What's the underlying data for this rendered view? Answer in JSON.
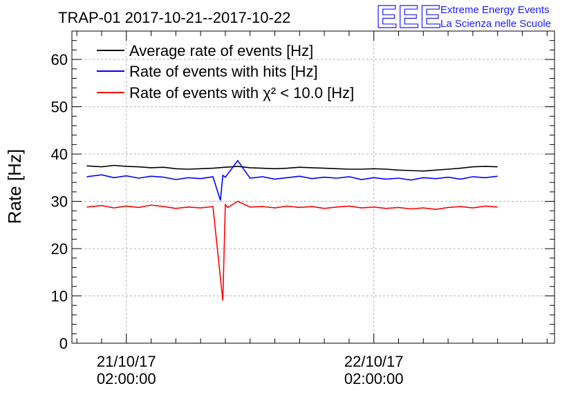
{
  "header": {
    "title": "TRAP-01 2017-10-21--2017-10-22",
    "logo_text": "EEE",
    "brand_line1": "Extreme Energy Events",
    "brand_line2": "La Scienza nelle Scuole"
  },
  "chart_data": {
    "type": "line",
    "title": "TRAP-01 2017-10-21--2017-10-22",
    "ylabel": "Rate [Hz]",
    "xlabel": "",
    "ylim": [
      0,
      66
    ],
    "xlim": [
      -0.22,
      1.73
    ],
    "x_unit": "days since 2017-10-21 02:00:00",
    "y_ticks": [
      0,
      10,
      20,
      30,
      40,
      50,
      60
    ],
    "x_ticks": [
      {
        "x": 0,
        "line1": "21/10/17",
        "line2": "02:00:00"
      },
      {
        "x": 1,
        "line1": "22/10/17",
        "line2": "02:00:00"
      }
    ],
    "grid": true,
    "legend_position": "top-left",
    "series": [
      {
        "name": "Average rate of events [Hz]",
        "color": "#000000",
        "x": [
          -0.16,
          -0.1,
          -0.05,
          0.0,
          0.05,
          0.1,
          0.15,
          0.2,
          0.25,
          0.3,
          0.35,
          0.4,
          0.45,
          0.5,
          0.55,
          0.6,
          0.65,
          0.7,
          0.75,
          0.8,
          0.85,
          0.9,
          0.95,
          1.0,
          1.05,
          1.1,
          1.15,
          1.2,
          1.25,
          1.3,
          1.35,
          1.4,
          1.45,
          1.5
        ],
        "values": [
          37.5,
          37.3,
          37.6,
          37.4,
          37.3,
          37.1,
          37.2,
          36.9,
          36.8,
          36.9,
          37.0,
          37.2,
          37.4,
          37.1,
          37.0,
          36.9,
          37.0,
          37.2,
          37.1,
          37.0,
          36.9,
          36.8,
          36.8,
          36.9,
          36.8,
          36.6,
          36.5,
          36.4,
          36.6,
          36.8,
          37.0,
          37.3,
          37.4,
          37.3
        ]
      },
      {
        "name": "Rate of events with hits [Hz]",
        "color": "#0000ff",
        "x": [
          -0.16,
          -0.1,
          -0.05,
          0.0,
          0.05,
          0.1,
          0.15,
          0.2,
          0.25,
          0.3,
          0.35,
          0.38,
          0.39,
          0.4,
          0.45,
          0.5,
          0.55,
          0.6,
          0.65,
          0.7,
          0.75,
          0.8,
          0.85,
          0.9,
          0.95,
          1.0,
          1.05,
          1.1,
          1.15,
          1.2,
          1.25,
          1.3,
          1.35,
          1.4,
          1.45,
          1.5
        ],
        "values": [
          35.2,
          35.6,
          35.0,
          35.4,
          34.9,
          35.3,
          35.1,
          34.6,
          35.0,
          34.8,
          35.2,
          30.2,
          35.5,
          35.1,
          38.6,
          34.9,
          35.2,
          34.7,
          35.0,
          35.3,
          34.8,
          35.1,
          34.9,
          35.2,
          34.6,
          35.0,
          34.7,
          34.9,
          34.5,
          35.0,
          34.8,
          35.1,
          34.7,
          35.2,
          35.0,
          35.3
        ]
      },
      {
        "name": "Rate of events with χ² < 10.0 [Hz]",
        "color": "#ff0000",
        "x": [
          -0.16,
          -0.1,
          -0.05,
          0.0,
          0.05,
          0.1,
          0.15,
          0.2,
          0.25,
          0.3,
          0.35,
          0.39,
          0.4,
          0.41,
          0.45,
          0.5,
          0.55,
          0.6,
          0.65,
          0.7,
          0.75,
          0.8,
          0.85,
          0.9,
          0.95,
          1.0,
          1.05,
          1.1,
          1.15,
          1.2,
          1.25,
          1.3,
          1.35,
          1.4,
          1.45,
          1.5
        ],
        "values": [
          28.8,
          29.1,
          28.6,
          29.0,
          28.7,
          29.2,
          28.9,
          28.5,
          28.8,
          28.6,
          28.9,
          9.0,
          29.3,
          28.7,
          30.0,
          28.8,
          28.9,
          28.6,
          29.0,
          28.7,
          28.9,
          28.5,
          28.8,
          29.0,
          28.6,
          28.8,
          28.5,
          28.7,
          28.4,
          28.6,
          28.3,
          28.7,
          28.9,
          28.6,
          29.0,
          28.8
        ]
      }
    ],
    "legend": [
      {
        "label": "Average rate of events [Hz]",
        "color": "#000000"
      },
      {
        "label": "Rate of events with hits [Hz]",
        "color": "#0000ff"
      },
      {
        "label": "Rate of events with χ² < 10.0 [Hz]",
        "color": "#ff0000"
      }
    ]
  }
}
